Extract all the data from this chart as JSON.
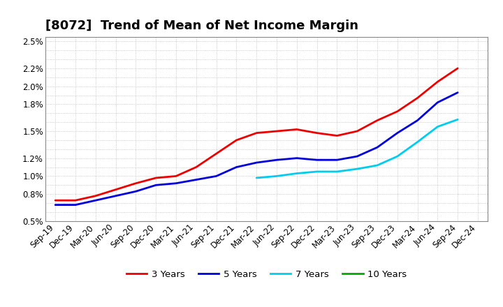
{
  "title": "[8072]  Trend of Mean of Net Income Margin",
  "x_labels": [
    "Sep-19",
    "Dec-19",
    "Mar-20",
    "Jun-20",
    "Sep-20",
    "Dec-20",
    "Mar-21",
    "Jun-21",
    "Sep-21",
    "Dec-21",
    "Mar-22",
    "Jun-22",
    "Sep-22",
    "Dec-22",
    "Mar-23",
    "Jun-23",
    "Sep-23",
    "Dec-23",
    "Mar-24",
    "Jun-24",
    "Sep-24",
    "Dec-24"
  ],
  "series": {
    "3 Years": {
      "color": "#ee0000",
      "values": [
        0.0073,
        0.0073,
        0.0078,
        0.0085,
        0.0092,
        0.0098,
        0.01,
        0.011,
        0.0125,
        0.014,
        0.0148,
        0.015,
        0.0152,
        0.0148,
        0.0145,
        0.015,
        0.0162,
        0.0172,
        0.0187,
        0.0205,
        0.022,
        null
      ]
    },
    "5 Years": {
      "color": "#0000dd",
      "values": [
        0.0068,
        0.0068,
        0.0073,
        0.0078,
        0.0083,
        0.009,
        0.0092,
        0.0096,
        0.01,
        0.011,
        0.0115,
        0.0118,
        0.012,
        0.0118,
        0.0118,
        0.0122,
        0.0132,
        0.0148,
        0.0162,
        0.0182,
        0.0193,
        null
      ]
    },
    "7 Years": {
      "color": "#00ccee",
      "values": [
        null,
        null,
        null,
        null,
        null,
        null,
        null,
        null,
        null,
        null,
        0.0098,
        0.01,
        0.0103,
        0.0105,
        0.0105,
        0.0108,
        0.0112,
        0.0122,
        0.0138,
        0.0155,
        0.0163,
        null
      ]
    },
    "10 Years": {
      "color": "#00aa00",
      "values": [
        null,
        null,
        null,
        null,
        null,
        null,
        null,
        null,
        null,
        null,
        null,
        null,
        null,
        null,
        null,
        null,
        null,
        null,
        null,
        null,
        null,
        null
      ]
    }
  },
  "legend_order": [
    "3 Years",
    "5 Years",
    "7 Years",
    "10 Years"
  ],
  "ylim": [
    0.005,
    0.0255
  ],
  "ytick_vals": [
    0.005,
    0.006,
    0.007,
    0.008,
    0.009,
    0.01,
    0.011,
    0.012,
    0.013,
    0.014,
    0.015,
    0.016,
    0.017,
    0.018,
    0.019,
    0.02,
    0.021,
    0.022,
    0.023,
    0.024,
    0.025
  ],
  "ytick_labels": [
    "0.5%",
    "",
    "",
    "0.8%",
    "",
    "1.0%",
    "",
    "1.2%",
    "",
    "",
    "1.5%",
    "",
    "",
    "1.8%",
    "",
    "2.0%",
    "",
    "2.2%",
    "",
    "",
    "2.5%"
  ],
  "background_color": "#ffffff",
  "plot_bg_color": "#ffffff",
  "grid_color": "#bbbbbb",
  "title_fontsize": 13,
  "tick_fontsize": 8.5,
  "legend_fontsize": 9.5,
  "line_width": 2.0
}
